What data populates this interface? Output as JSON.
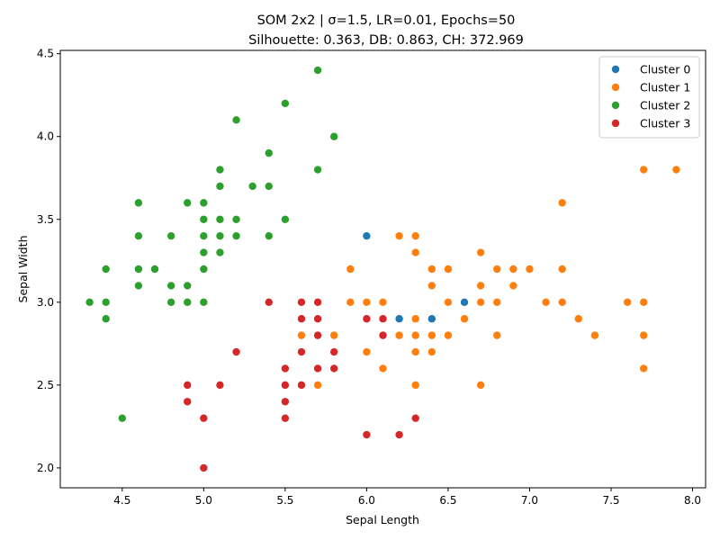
{
  "chart_data": {
    "type": "scatter",
    "title_line1": "SOM 2x2 | σ=1.5, LR=0.01, Epochs=50",
    "title_line2": "Silhouette: 0.363, DB: 0.863, CH: 372.969",
    "xlabel": "Sepal Length",
    "ylabel": "Sepal Width",
    "xlim": [
      4.12,
      8.08
    ],
    "ylim": [
      1.88,
      4.52
    ],
    "xticks": [
      "4.5",
      "5.0",
      "5.5",
      "6.0",
      "6.5",
      "7.0",
      "7.5",
      "8.0"
    ],
    "yticks": [
      "2.0",
      "2.5",
      "3.0",
      "3.5",
      "4.0",
      "4.5"
    ],
    "grid": false,
    "legend_position": "top-right",
    "series": [
      {
        "name": "Cluster 0",
        "color": "#1f77b4",
        "points": [
          [
            6.0,
            3.4
          ],
          [
            6.2,
            2.9
          ],
          [
            6.4,
            2.9
          ],
          [
            6.6,
            3.0
          ]
        ]
      },
      {
        "name": "Cluster 1",
        "color": "#ff7f0e",
        "points": [
          [
            5.6,
            2.8
          ],
          [
            5.7,
            2.5
          ],
          [
            5.8,
            2.8
          ],
          [
            5.9,
            3.0
          ],
          [
            5.9,
            3.2
          ],
          [
            6.0,
            2.7
          ],
          [
            6.0,
            3.0
          ],
          [
            6.1,
            2.6
          ],
          [
            6.1,
            3.0
          ],
          [
            6.2,
            2.8
          ],
          [
            6.2,
            3.4
          ],
          [
            6.3,
            2.5
          ],
          [
            6.3,
            2.7
          ],
          [
            6.3,
            2.8
          ],
          [
            6.3,
            2.9
          ],
          [
            6.3,
            3.3
          ],
          [
            6.3,
            3.4
          ],
          [
            6.4,
            2.7
          ],
          [
            6.4,
            2.8
          ],
          [
            6.4,
            3.1
          ],
          [
            6.4,
            3.2
          ],
          [
            6.5,
            2.8
          ],
          [
            6.5,
            3.0
          ],
          [
            6.5,
            3.2
          ],
          [
            6.6,
            2.9
          ],
          [
            6.7,
            2.5
          ],
          [
            6.7,
            3.0
          ],
          [
            6.7,
            3.1
          ],
          [
            6.7,
            3.3
          ],
          [
            6.8,
            2.8
          ],
          [
            6.8,
            3.0
          ],
          [
            6.8,
            3.2
          ],
          [
            6.9,
            3.1
          ],
          [
            6.9,
            3.2
          ],
          [
            7.0,
            3.2
          ],
          [
            7.1,
            3.0
          ],
          [
            7.2,
            3.0
          ],
          [
            7.2,
            3.2
          ],
          [
            7.2,
            3.6
          ],
          [
            7.3,
            2.9
          ],
          [
            7.4,
            2.8
          ],
          [
            7.6,
            3.0
          ],
          [
            7.7,
            2.6
          ],
          [
            7.7,
            2.8
          ],
          [
            7.7,
            3.0
          ],
          [
            7.7,
            3.8
          ],
          [
            7.9,
            3.8
          ]
        ]
      },
      {
        "name": "Cluster 2",
        "color": "#2ca02c",
        "points": [
          [
            4.3,
            3.0
          ],
          [
            4.4,
            2.9
          ],
          [
            4.4,
            3.0
          ],
          [
            4.4,
            3.2
          ],
          [
            4.5,
            2.3
          ],
          [
            4.6,
            3.1
          ],
          [
            4.6,
            3.2
          ],
          [
            4.6,
            3.4
          ],
          [
            4.6,
            3.6
          ],
          [
            4.7,
            3.2
          ],
          [
            4.8,
            3.0
          ],
          [
            4.8,
            3.1
          ],
          [
            4.8,
            3.4
          ],
          [
            4.9,
            3.0
          ],
          [
            4.9,
            3.1
          ],
          [
            4.9,
            3.6
          ],
          [
            5.0,
            3.0
          ],
          [
            5.0,
            3.2
          ],
          [
            5.0,
            3.3
          ],
          [
            5.0,
            3.4
          ],
          [
            5.0,
            3.5
          ],
          [
            5.0,
            3.6
          ],
          [
            5.1,
            3.3
          ],
          [
            5.1,
            3.4
          ],
          [
            5.1,
            3.5
          ],
          [
            5.1,
            3.7
          ],
          [
            5.1,
            3.8
          ],
          [
            5.2,
            3.4
          ],
          [
            5.2,
            3.5
          ],
          [
            5.2,
            4.1
          ],
          [
            5.3,
            3.7
          ],
          [
            5.4,
            3.4
          ],
          [
            5.4,
            3.7
          ],
          [
            5.4,
            3.9
          ],
          [
            5.5,
            3.5
          ],
          [
            5.5,
            4.2
          ],
          [
            5.7,
            3.8
          ],
          [
            5.7,
            4.4
          ],
          [
            5.8,
            4.0
          ]
        ]
      },
      {
        "name": "Cluster 3",
        "color": "#d62728",
        "points": [
          [
            4.9,
            2.4
          ],
          [
            4.9,
            2.5
          ],
          [
            5.0,
            2.0
          ],
          [
            5.0,
            2.3
          ],
          [
            5.1,
            2.5
          ],
          [
            5.2,
            2.7
          ],
          [
            5.4,
            3.0
          ],
          [
            5.5,
            2.3
          ],
          [
            5.5,
            2.4
          ],
          [
            5.5,
            2.5
          ],
          [
            5.5,
            2.6
          ],
          [
            5.6,
            2.5
          ],
          [
            5.6,
            2.7
          ],
          [
            5.6,
            2.9
          ],
          [
            5.6,
            3.0
          ],
          [
            5.7,
            2.6
          ],
          [
            5.7,
            2.8
          ],
          [
            5.7,
            2.9
          ],
          [
            5.7,
            3.0
          ],
          [
            5.8,
            2.6
          ],
          [
            5.8,
            2.7
          ],
          [
            6.0,
            2.2
          ],
          [
            6.0,
            2.9
          ],
          [
            6.1,
            2.8
          ],
          [
            6.1,
            2.9
          ],
          [
            6.2,
            2.2
          ],
          [
            6.3,
            2.3
          ]
        ]
      }
    ]
  }
}
